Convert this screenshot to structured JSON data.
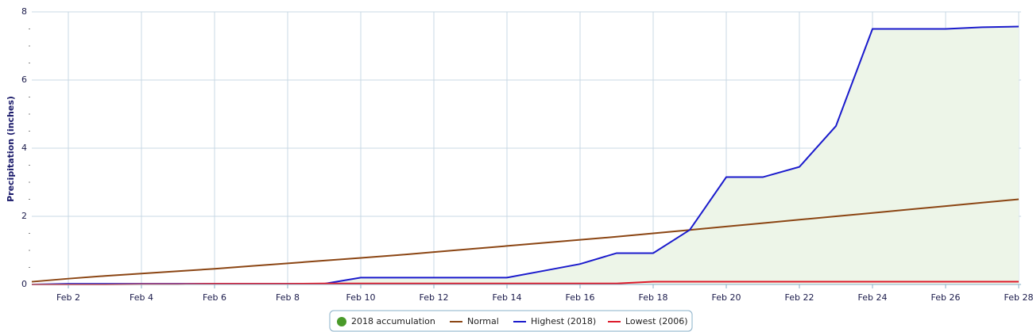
{
  "chart_data": {
    "type": "line",
    "y_label": "Precipitation (inches)",
    "categories": [
      null,
      "Feb 2",
      null,
      "Feb 4",
      null,
      "Feb 6",
      null,
      "Feb 8",
      null,
      "Feb 10",
      null,
      "Feb 12",
      null,
      "Feb 14",
      null,
      "Feb 16",
      null,
      "Feb 18",
      null,
      "Feb 20",
      null,
      "Feb 22",
      null,
      "Feb 24",
      null,
      "Feb 26",
      null,
      "Feb 28"
    ],
    "ylim": [
      0,
      8
    ],
    "yticks": [
      0,
      2,
      4,
      6,
      8
    ],
    "grid": true,
    "series": [
      {
        "name": "2018 accumulation",
        "color": "#4a9a2a",
        "fill": "#edf5e8",
        "area": true,
        "values": [
          0,
          0.02,
          0.02,
          0.02,
          0.02,
          0.02,
          0.02,
          0.02,
          0.02,
          0.2,
          0.2,
          0.2,
          0.2,
          0.2,
          0.4,
          0.6,
          0.92,
          0.92,
          1.6,
          3.15,
          3.15,
          3.45,
          4.65,
          7.5,
          7.5,
          7.5,
          7.55,
          7.57
        ]
      },
      {
        "name": "Normal",
        "color": "#8b4513",
        "values": [
          0.08,
          0.17,
          0.25,
          0.32,
          0.39,
          0.46,
          0.54,
          0.62,
          0.7,
          0.78,
          0.86,
          0.95,
          1.04,
          1.13,
          1.22,
          1.31,
          1.4,
          1.5,
          1.6,
          1.7,
          1.8,
          1.9,
          2.0,
          2.1,
          2.2,
          2.3,
          2.4,
          2.5
        ]
      },
      {
        "name": "Highest (2018)",
        "color": "#1a1acc",
        "values": [
          0,
          0.02,
          0.02,
          0.02,
          0.02,
          0.02,
          0.02,
          0.02,
          0.02,
          0.2,
          0.2,
          0.2,
          0.2,
          0.2,
          0.4,
          0.6,
          0.92,
          0.92,
          1.6,
          3.15,
          3.15,
          3.45,
          4.65,
          7.5,
          7.5,
          7.5,
          7.55,
          7.57
        ]
      },
      {
        "name": "Lowest (2006)",
        "color": "#dd1a2a",
        "values": [
          0,
          0,
          0,
          0.01,
          0.01,
          0.02,
          0.02,
          0.02,
          0.03,
          0.03,
          0.03,
          0.03,
          0.03,
          0.03,
          0.03,
          0.03,
          0.03,
          0.08,
          0.08,
          0.08,
          0.08,
          0.08,
          0.08,
          0.08,
          0.08,
          0.08,
          0.08,
          0.08
        ]
      }
    ]
  }
}
